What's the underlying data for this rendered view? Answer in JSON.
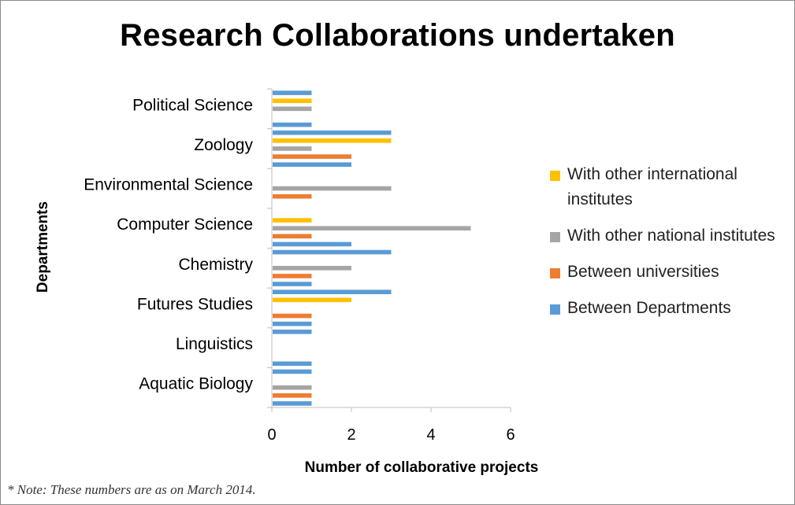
{
  "chart_data": {
    "type": "bar",
    "orientation": "horizontal",
    "title": "Research Collaborations undertaken",
    "xlabel": "Number of collaborative projects",
    "ylabel": "Departments",
    "xlim": [
      0,
      6
    ],
    "xticks": [
      "0",
      "2",
      "4",
      "6"
    ],
    "grid": false,
    "legend_position": "right",
    "categories": [
      "Aquatic Biology",
      "Linguistics",
      "Futures Studies",
      "Chemistry",
      "Computer Science",
      "Environmental Science",
      "Zoology",
      "Political Science"
    ],
    "series": [
      {
        "name": "Between Departments",
        "color": "#5B9BD5",
        "values": [
          1,
          1,
          1,
          1,
          2,
          0,
          2,
          1
        ]
      },
      {
        "name": "Between universities",
        "color": "#ED7D31",
        "values": [
          1,
          0,
          1,
          1,
          1,
          1,
          2,
          0
        ]
      },
      {
        "name": "With other national institutes",
        "color": "#A5A5A5",
        "values": [
          1,
          0,
          0,
          2,
          5,
          3,
          1,
          1
        ]
      },
      {
        "name": "With other international institutes",
        "color": "#FFC000",
        "values": [
          0,
          0,
          2,
          0,
          1,
          0,
          3,
          1
        ]
      }
    ],
    "extra_bars": [
      {
        "category": "Aquatic Biology",
        "series": "Between Departments",
        "value": 1
      },
      {
        "category": "Linguistics",
        "series": "Between Departments",
        "value": 1
      },
      {
        "category": "Futures Studies",
        "series": "Between Departments",
        "value": 3
      },
      {
        "category": "Chemistry",
        "series": "Between Departments",
        "value": 3
      },
      {
        "category": "Zoology",
        "series": "Between Departments",
        "value": 3
      },
      {
        "category": "Political Science",
        "series": "Between Departments",
        "value": 1
      }
    ]
  },
  "footnote": "* Note: These numbers are as on March 2014."
}
